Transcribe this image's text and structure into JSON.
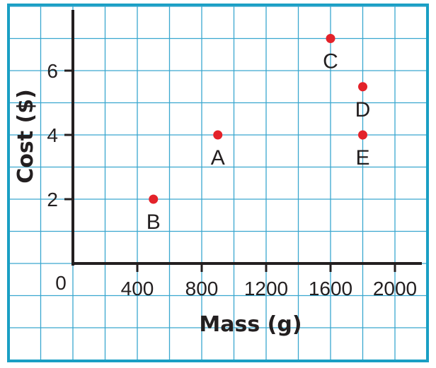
{
  "chart_data": {
    "type": "scatter",
    "title": "",
    "xlabel": "Mass (g)",
    "ylabel": "Cost ($)",
    "xlim": [
      0,
      2000
    ],
    "ylim": [
      0,
      6
    ],
    "origin_label": "0",
    "x_ticks": [
      400,
      800,
      1200,
      1600,
      2000
    ],
    "x_tick_labels": [
      "400",
      "800",
      "1200",
      "1600",
      "2000"
    ],
    "y_ticks": [
      2,
      4,
      6
    ],
    "y_tick_labels": [
      "2",
      "4",
      "6"
    ],
    "grid": true,
    "points": [
      {
        "label": "A",
        "x": 900,
        "y": 4
      },
      {
        "label": "B",
        "x": 500,
        "y": 2
      },
      {
        "label": "C",
        "x": 1600,
        "y": 7
      },
      {
        "label": "D",
        "x": 1800,
        "y": 5.5
      },
      {
        "label": "E",
        "x": 1800,
        "y": 4
      }
    ],
    "colors": {
      "border": "#1a9fc4",
      "grid": "#3aa7cf",
      "axis": "#231f20",
      "point": "#e3222a"
    }
  }
}
